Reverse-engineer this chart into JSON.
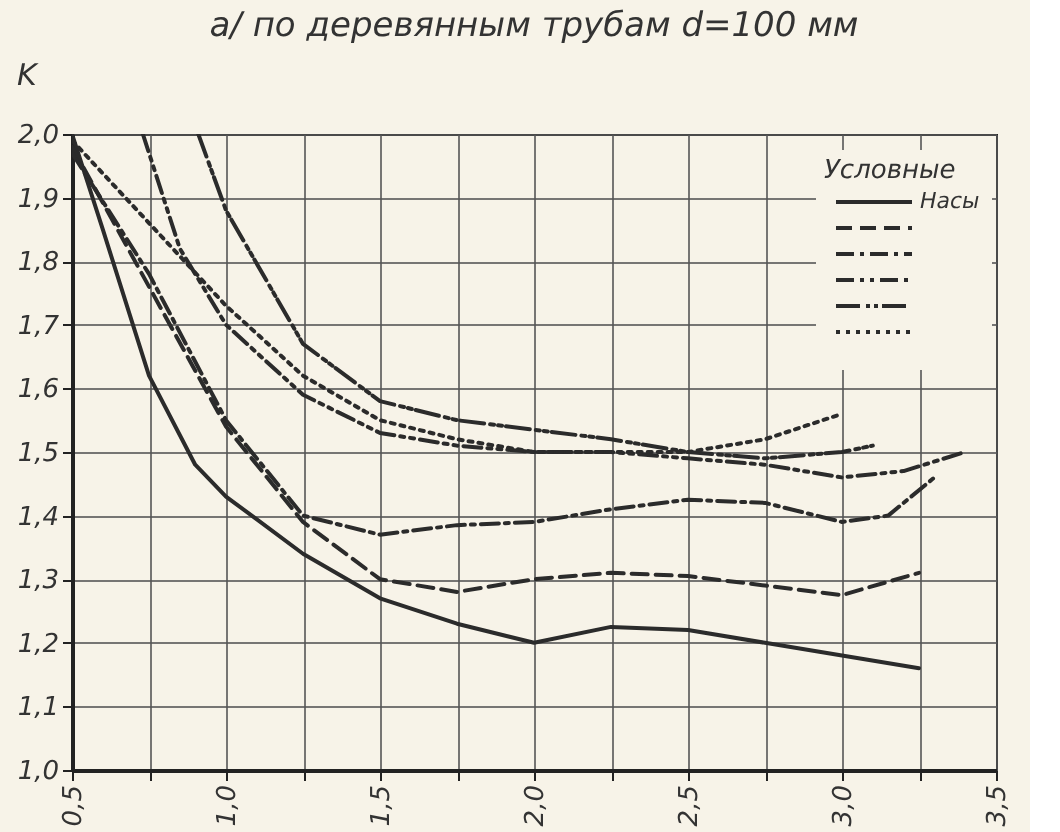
{
  "chart_data": {
    "type": "line",
    "title": "а/ по деревянным трубам d=100 мм",
    "ylabel": "K",
    "legend_title": "Условные",
    "xlim": [
      0.5,
      3.5
    ],
    "ylim": [
      1.0,
      2.0
    ],
    "xticks": [
      {
        "value": 0.5,
        "label": "0,5"
      },
      {
        "value": 0.75,
        "label": null
      },
      {
        "value": 1.0,
        "label": "1,0"
      },
      {
        "value": 1.25,
        "label": null
      },
      {
        "value": 1.5,
        "label": "1,5"
      },
      {
        "value": 1.75,
        "label": null
      },
      {
        "value": 2.0,
        "label": "2,0"
      },
      {
        "value": 2.25,
        "label": null
      },
      {
        "value": 2.5,
        "label": "2,5"
      },
      {
        "value": 2.75,
        "label": null
      },
      {
        "value": 3.0,
        "label": "3,0"
      },
      {
        "value": 3.25,
        "label": null
      },
      {
        "value": 3.5,
        "label": "3,5"
      }
    ],
    "yticks": [
      {
        "value": 1.0,
        "label": "1,0"
      },
      {
        "value": 1.1,
        "label": "1,1"
      },
      {
        "value": 1.2,
        "label": "1,2"
      },
      {
        "value": 1.3,
        "label": "1,3"
      },
      {
        "value": 1.4,
        "label": "1,4"
      },
      {
        "value": 1.5,
        "label": "1,5"
      },
      {
        "value": 1.6,
        "label": "1,6"
      },
      {
        "value": 1.7,
        "label": "1,7"
      },
      {
        "value": 1.8,
        "label": "1,8"
      },
      {
        "value": 1.9,
        "label": "1,9"
      },
      {
        "value": 2.0,
        "label": "2,0"
      }
    ],
    "grid": true,
    "legend": "top right",
    "marker": "none",
    "series": [
      {
        "name": "Насы",
        "color": "#2b2b2b",
        "line_style": "solid",
        "x": [
          0.5,
          0.6,
          0.75,
          0.9,
          1.0,
          1.25,
          1.5,
          1.75,
          2.0,
          2.25,
          2.5,
          2.75,
          3.0,
          3.25
        ],
        "values": [
          2.0,
          1.85,
          1.62,
          1.48,
          1.43,
          1.34,
          1.27,
          1.23,
          1.2,
          1.225,
          1.22,
          1.2,
          1.18,
          1.16
        ]
      },
      {
        "color": "#2b2b2b",
        "line_style": "dashed",
        "x": [
          0.5,
          0.75,
          1.0,
          1.25,
          1.5,
          1.75,
          2.0,
          2.25,
          2.5,
          2.75,
          3.0,
          3.25
        ],
        "values": [
          1.98,
          1.76,
          1.54,
          1.39,
          1.3,
          1.28,
          1.3,
          1.31,
          1.305,
          1.29,
          1.275,
          1.31
        ]
      },
      {
        "color": "#2b2b2b",
        "line_style": "dashed",
        "x": [
          0.5,
          0.75,
          1.0,
          1.25,
          1.5,
          1.75,
          2.0,
          2.25,
          2.5,
          2.75,
          3.0,
          3.15,
          3.3
        ],
        "values": [
          1.97,
          1.78,
          1.55,
          1.4,
          1.37,
          1.385,
          1.39,
          1.41,
          1.425,
          1.42,
          1.39,
          1.4,
          1.46
        ]
      },
      {
        "color": "#2b2b2b",
        "line_style": "dashed",
        "x": [
          0.73,
          0.85,
          1.0,
          1.25,
          1.5,
          1.75,
          2.0,
          2.25,
          2.5,
          2.75,
          3.0,
          3.2,
          3.4
        ],
        "values": [
          2.0,
          1.82,
          1.7,
          1.59,
          1.53,
          1.51,
          1.5,
          1.5,
          1.49,
          1.48,
          1.46,
          1.47,
          1.5
        ]
      },
      {
        "color": "#2b2b2b",
        "line_style": "dashed",
        "x": [
          0.91,
          1.0,
          1.25,
          1.5,
          1.75,
          2.0,
          2.25,
          2.5,
          2.75,
          3.0,
          3.1
        ],
        "values": [
          2.0,
          1.88,
          1.67,
          1.58,
          1.55,
          1.535,
          1.52,
          1.5,
          1.49,
          1.5,
          1.51
        ]
      },
      {
        "color": "#2b2b2b",
        "line_style": "dotted",
        "x": [
          0.5,
          0.75,
          1.0,
          1.25,
          1.5,
          1.75,
          2.0,
          2.25,
          2.5,
          2.75,
          3.0
        ],
        "values": [
          1.99,
          1.86,
          1.73,
          1.62,
          1.55,
          1.52,
          1.5,
          1.5,
          1.5,
          1.52,
          1.56
        ]
      }
    ]
  }
}
